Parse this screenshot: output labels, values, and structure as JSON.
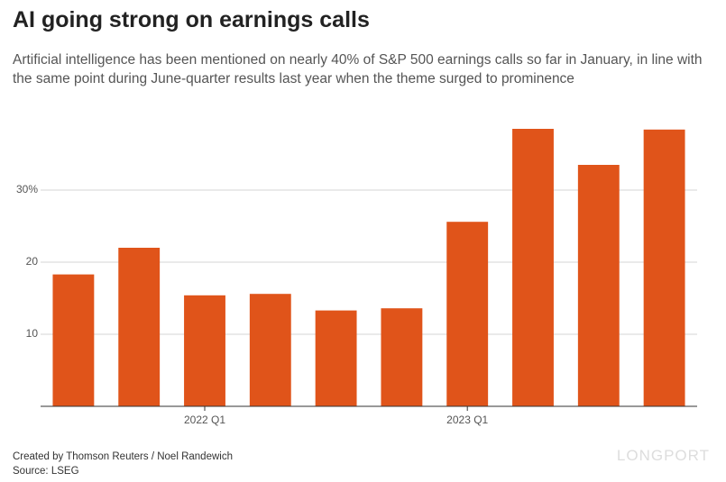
{
  "title": "AI going strong on earnings calls",
  "subtitle": "Artificial intelligence has been mentioned on nearly 40% of S&P 500 earnings calls so far in January, in line with the same point during June-quarter results last year when the theme surged to prominence",
  "chart_data": {
    "type": "bar",
    "categories": [
      null,
      null,
      "2022 Q1",
      null,
      null,
      null,
      "2023 Q1",
      null,
      null,
      null
    ],
    "values": [
      18.3,
      22,
      15.4,
      15.6,
      13.3,
      13.6,
      25.6,
      38.5,
      33.5,
      38.4
    ],
    "color": "#e0541a",
    "ylim": [
      0,
      40
    ],
    "yticks": [
      10,
      20,
      {
        "value": 30,
        "label": "30%"
      }
    ],
    "grid": true
  },
  "footer": {
    "credit": "Created by Thomson Reuters / Noel Randewich",
    "source": "Source: LSEG"
  },
  "watermark": "LONGPORT"
}
